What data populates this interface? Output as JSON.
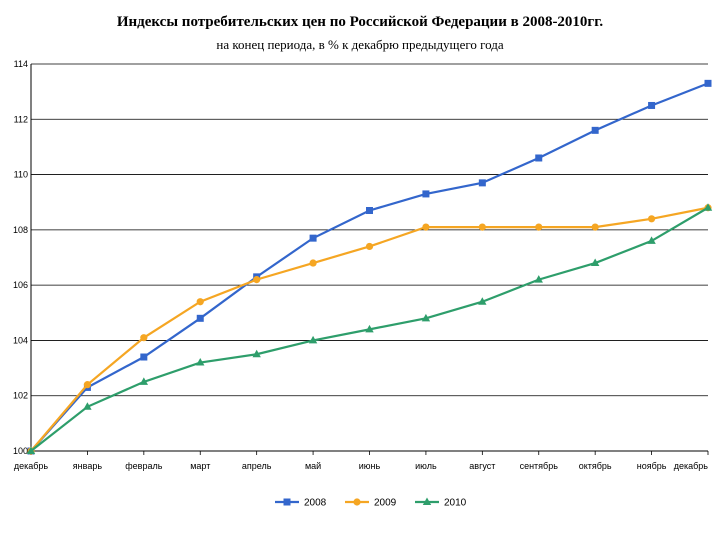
{
  "chart_data": {
    "type": "line",
    "title": "Индексы потребительских цен по Российской Федерации в 2008-2010гг.",
    "subtitle": "на конец периода, в % к декабрю предыдущего года",
    "categories": [
      "декабрь",
      "январь",
      "февраль",
      "март",
      "апрель",
      "май",
      "июнь",
      "июль",
      "август",
      "сентябрь",
      "октябрь",
      "ноябрь",
      "декабрь"
    ],
    "ylim": [
      100,
      114
    ],
    "yticks": [
      "100",
      "102",
      "104",
      "106",
      "108",
      "110",
      "112",
      "114"
    ],
    "grid": true,
    "legend_position": "bottom",
    "series": [
      {
        "name": "2008",
        "color": "#3366cc",
        "marker": "square",
        "values": [
          100,
          102.3,
          103.4,
          104.8,
          106.3,
          107.7,
          108.7,
          109.3,
          109.7,
          110.6,
          111.6,
          112.5,
          113.3
        ]
      },
      {
        "name": "2009",
        "color": "#f5a623",
        "marker": "circle",
        "values": [
          100,
          102.4,
          104.1,
          105.4,
          106.2,
          106.8,
          107.4,
          108.1,
          108.1,
          108.1,
          108.1,
          108.4,
          108.8
        ]
      },
      {
        "name": "2010",
        "color": "#2e9e6b",
        "marker": "triangle",
        "values": [
          100,
          101.6,
          102.5,
          103.2,
          103.5,
          104.0,
          104.4,
          104.8,
          105.4,
          106.2,
          106.8,
          107.6,
          108.8
        ]
      }
    ]
  }
}
